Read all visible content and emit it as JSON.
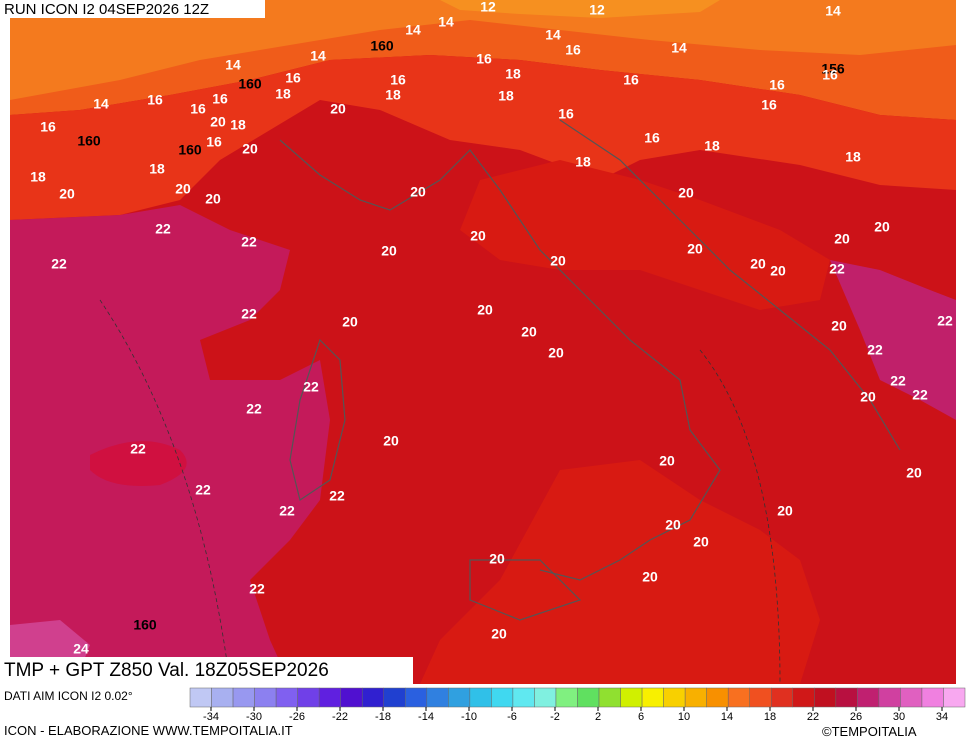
{
  "header": {
    "run": "RUN ICON I2 04SEP2026 12Z"
  },
  "footer": {
    "title": "TMP + GPT Z850 Val. 18Z05SEP2026",
    "source": "DATI AIM ICON I2 0.02°",
    "credit": "ICON - ELABORAZIONE WWW.TEMPOITALIA.IT",
    "copyright": "©TEMPOITALIA"
  },
  "colorbar": {
    "ticks": [
      -34,
      -30,
      -26,
      -22,
      -18,
      -14,
      -10,
      -6,
      -2,
      2,
      6,
      10,
      14,
      18,
      22,
      26,
      30,
      34
    ]
  },
  "map": {
    "contour_labels": [
      12,
      12,
      14,
      14,
      14,
      14,
      160,
      16,
      14,
      14,
      16,
      18,
      156,
      16,
      14,
      160,
      16,
      16,
      16,
      16,
      14,
      16,
      18,
      20,
      18,
      18,
      16,
      16,
      16,
      16,
      20,
      18,
      16,
      160,
      16,
      20,
      160,
      16,
      18,
      18,
      18,
      18,
      18,
      20,
      20,
      20,
      20,
      20,
      22,
      22,
      20,
      20,
      20,
      20,
      20,
      20,
      20,
      20,
      22,
      22,
      22,
      20,
      20,
      20,
      20,
      22,
      20,
      22,
      22,
      22,
      22,
      20,
      22,
      20,
      22,
      20,
      20,
      22,
      22,
      22,
      20,
      20,
      20,
      20,
      20,
      22,
      160,
      20,
      24
    ]
  }
}
